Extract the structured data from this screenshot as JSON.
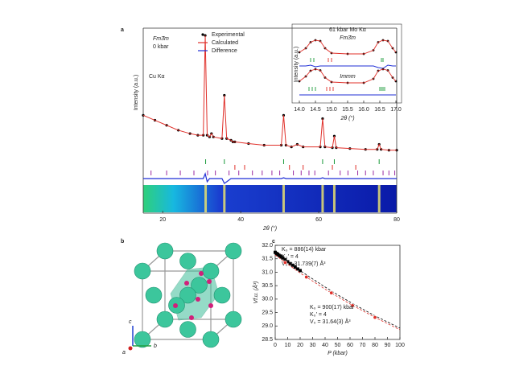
{
  "figure": {
    "panel_labels": [
      "a",
      "b",
      "c"
    ]
  },
  "structure": {
    "axis_labels": [
      "c",
      "b",
      "a"
    ]
  },
  "chart_data": [
    {
      "type": "line",
      "annotations": [
        "Fm3̄m",
        "0 kbar",
        "Cu Kα"
      ],
      "xlabel": "2θ (°)",
      "ylabel": "Intensity (a.u.)",
      "xlim": [
        15,
        80
      ],
      "xticks": [
        20,
        40,
        60,
        80
      ],
      "ylim": [
        0,
        75
      ],
      "x": [
        15,
        18,
        21,
        24,
        27,
        29,
        30.4,
        30.9,
        31.4,
        32,
        32.5,
        33,
        35.2,
        35.8,
        36.4,
        37.5,
        38,
        38.5,
        42,
        46,
        50.4,
        51,
        51.6,
        53,
        54.5,
        56,
        60.4,
        61,
        61.6,
        63.5,
        64,
        64.5,
        68,
        72,
        75,
        75.5,
        76,
        78,
        80
      ],
      "series": [
        {
          "name": "Experimental",
          "color": "#000000",
          "marker": "dot",
          "values": [
            25,
            22,
            19,
            16,
            14,
            13,
            13,
            73,
            13,
            12,
            14,
            12,
            11,
            37,
            11,
            10,
            9,
            9,
            8,
            7,
            7,
            25,
            7,
            6,
            7.5,
            6,
            6,
            23,
            6,
            5.5,
            12.5,
            5.5,
            5,
            4.5,
            4.5,
            7.5,
            4.5,
            4,
            4
          ]
        },
        {
          "name": "Calculated",
          "color": "#e0302a",
          "marker": "line",
          "values": [
            25,
            22,
            19,
            16,
            14,
            13,
            13,
            73,
            13,
            12,
            14,
            12,
            11,
            37,
            11,
            10,
            9,
            9,
            8,
            7,
            7,
            25,
            7,
            6,
            7.5,
            6,
            6,
            23,
            6,
            5.5,
            12.5,
            5.5,
            5,
            4.5,
            4.5,
            7.5,
            4.5,
            4,
            4
          ]
        },
        {
          "name": "Difference",
          "color": "#1f2fd6",
          "marker": "line",
          "values": [
            0,
            0,
            0,
            0,
            0,
            0,
            0,
            3,
            -2,
            0,
            0,
            0,
            0,
            -3,
            -2,
            0,
            0,
            0,
            0,
            0,
            0,
            0.5,
            0,
            0,
            0,
            0,
            0,
            0.5,
            0,
            0,
            0,
            0,
            0,
            0,
            0,
            0,
            0,
            0,
            0
          ]
        }
      ],
      "reflections": [
        {
          "color": "#1a9a3a",
          "positions": [
            31,
            35.8,
            51,
            61,
            64,
            75.5
          ]
        },
        {
          "color": "#e0302a",
          "positions": [
            38.5,
            41,
            52.5,
            56,
            63.5,
            69.5
          ]
        },
        {
          "color": "#9a2aa0",
          "positions": [
            17,
            21,
            24.5,
            28,
            31.5,
            33.5,
            37,
            39.5,
            43,
            45.5,
            48,
            50,
            53.5,
            55.5,
            57.5,
            59,
            62.5,
            65.5,
            67.5,
            70,
            72,
            74,
            76.5,
            78,
            79.5
          ]
        }
      ]
    },
    {
      "type": "line",
      "title": "61 kbar Mo Kα",
      "xlabel": "2θ (°)",
      "ylabel": "Intensity (a.u.)",
      "xlim": [
        14,
        17
      ],
      "xticks": [
        {
          "value": 14,
          "label": "14.0"
        },
        14.5,
        {
          "value": 15,
          "label": "15.0"
        },
        15.5,
        {
          "value": 16,
          "label": "16.0"
        },
        16.5,
        {
          "value": 17,
          "label": "17.0"
        }
      ],
      "ylim": [
        0,
        50
      ],
      "x": [
        14.0,
        14.2,
        14.35,
        14.5,
        14.65,
        14.8,
        15.0,
        15.5,
        16.0,
        16.3,
        16.45,
        16.6,
        16.75,
        16.9,
        17.0
      ],
      "panels": [
        {
          "label": "Fm3̄m",
          "series": [
            {
              "color": "#000000",
              "marker": "dot",
              "values": [
                10,
                20,
                35,
                40,
                38,
                20,
                8,
                6,
                6,
                15,
                35,
                40,
                38,
                20,
                10
              ]
            },
            {
              "color": "#e0302a",
              "marker": "line",
              "values": [
                10,
                20,
                35,
                40,
                38,
                20,
                8,
                6,
                6,
                15,
                35,
                40,
                38,
                20,
                10
              ]
            },
            {
              "color": "#1f2fd6",
              "marker": "line",
              "values": [
                0,
                0,
                1,
                -1,
                0,
                0,
                0,
                0,
                0,
                0,
                -2,
                -3,
                1,
                0,
                0
              ]
            }
          ],
          "reflections": [
            {
              "color": "#1a9a3a",
              "positions": [
                14.35,
                14.45,
                16.55,
                16.6
              ]
            },
            {
              "color": "#e0302a",
              "positions": [
                14.9,
                15.0
              ]
            }
          ]
        },
        {
          "label": "Immm",
          "series": [
            {
              "color": "#000000",
              "marker": "dot",
              "values": [
                10,
                22,
                36,
                40,
                37,
                19,
                8,
                6,
                6,
                16,
                36,
                40,
                37,
                19,
                10
              ]
            },
            {
              "color": "#e0302a",
              "marker": "line",
              "values": [
                10,
                22,
                36,
                40,
                37,
                19,
                8,
                6,
                6,
                16,
                36,
                40,
                37,
                19,
                10
              ]
            },
            {
              "color": "#1f2fd6",
              "marker": "line",
              "values": [
                0,
                0,
                0,
                0,
                0,
                0,
                0,
                0,
                0,
                0,
                0,
                0,
                0,
                0,
                0
              ]
            }
          ],
          "reflections": [
            {
              "color": "#1a9a3a",
              "positions": [
                14.3,
                14.4,
                14.5,
                16.5,
                16.55,
                16.6,
                16.65
              ]
            },
            {
              "color": "#e0302a",
              "positions": [
                14.85,
                14.95,
                15.05
              ]
            }
          ]
        }
      ]
    },
    {
      "type": "scatter",
      "xlabel": "P (kbar)",
      "ylabel": "Vf.u. (Å³)",
      "xlim": [
        0,
        100
      ],
      "xticks": [
        0,
        10,
        20,
        30,
        40,
        50,
        60,
        70,
        80,
        90,
        100
      ],
      "ylim": [
        28.5,
        32
      ],
      "yticks": [
        28.5,
        {
          "value": 29,
          "label": "29.0"
        },
        29.5,
        {
          "value": 30,
          "label": "30.0"
        },
        30.5,
        {
          "value": 31,
          "label": "31.0"
        },
        31.5,
        {
          "value": 32,
          "label": "32.0"
        }
      ],
      "series": [
        {
          "color": "#000000",
          "marker": "square",
          "x": [
            0,
            1,
            2,
            3,
            4,
            5,
            6,
            8,
            10,
            12,
            14,
            16,
            18,
            20
          ],
          "values": [
            31.74,
            31.7,
            31.67,
            31.63,
            31.6,
            31.57,
            31.53,
            31.46,
            31.39,
            31.32,
            31.26,
            31.19,
            31.12,
            31.06
          ],
          "fit": {
            "x": [
              0,
              10,
              20,
              30,
              40,
              50,
              60,
              70,
              80,
              90,
              100
            ],
            "values": [
              31.739,
              31.39,
              31.06,
              30.75,
              30.45,
              30.16,
              29.89,
              29.63,
              29.38,
              29.15,
              28.92
            ]
          },
          "annotations": [
            "K₀ = 886(14) kbar",
            "K₀′ = 4",
            "V₀ = 31.739(7) Å³"
          ]
        },
        {
          "color": "#e0302a",
          "marker": "circle",
          "x": [
            8,
            25,
            45,
            62,
            80
          ],
          "values": [
            31.36,
            30.82,
            30.23,
            29.76,
            29.32
          ],
          "fit": {
            "x": [
              0,
              10,
              20,
              30,
              40,
              50,
              60,
              70,
              80,
              90,
              100
            ],
            "values": [
              31.64,
              31.3,
              30.97,
              30.67,
              30.37,
              30.09,
              29.82,
              29.57,
              29.32,
              29.09,
              28.86
            ]
          },
          "annotations": [
            "K₀ = 900(17) kbar",
            "K₀′ = 4",
            "V₀ = 31.64(3) Å³"
          ]
        }
      ]
    }
  ]
}
